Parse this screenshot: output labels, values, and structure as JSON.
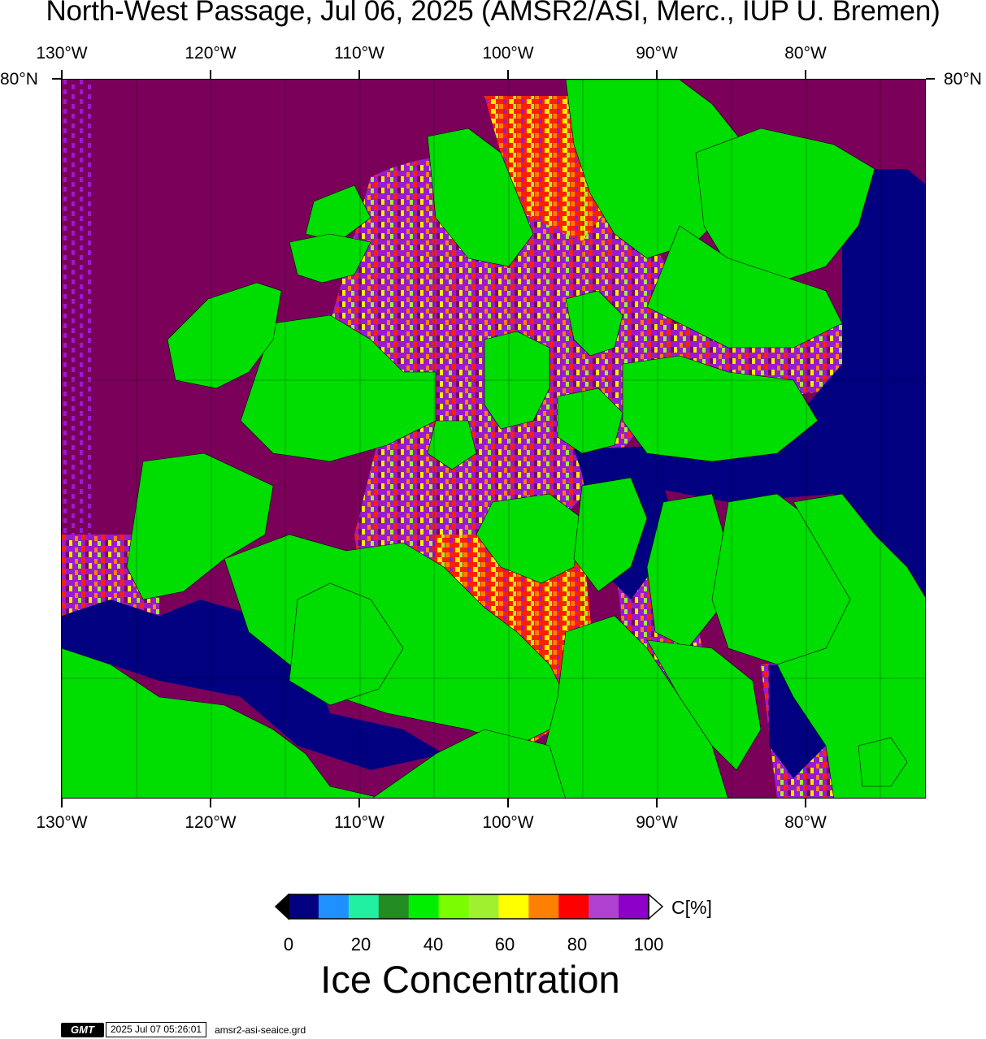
{
  "title": "North-West Passage, Jul 06, 2025 (AMSR2/ASI, Merc., IUP U. Bremen)",
  "lon_labels": [
    "130°W",
    "120°W",
    "110°W",
    "100°W",
    "90°W",
    "80°W"
  ],
  "lat_label": "80°N",
  "colorbar": {
    "colors": [
      "#000080",
      "#1e90ff",
      "#20f0a0",
      "#228b22",
      "#00ee00",
      "#7cfc00",
      "#a0f030",
      "#ffff00",
      "#ff8000",
      "#ff0000",
      "#b040d0",
      "#8c00c8"
    ],
    "tick_labels": [
      "0",
      "20",
      "40",
      "60",
      "80",
      "100"
    ],
    "units": "C[%]"
  },
  "legend_title": "Ice Concentration",
  "footer": {
    "logo": "GMT",
    "timestamp": "2025 Jul 07 05:26:01",
    "filename": "amsr2-asi-seaice.grd"
  },
  "map_colors": {
    "land": "#00dd00",
    "open_water": "#000080",
    "full_ice": "#7a005a",
    "high_ice": "#9a1ad0",
    "medium_ice": "#ff2000",
    "low_ice": "#ffee00"
  }
}
